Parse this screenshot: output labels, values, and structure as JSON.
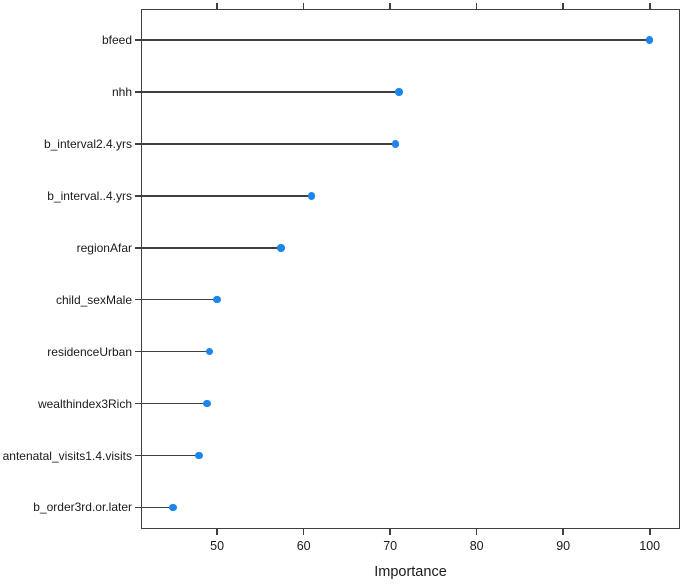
{
  "chart_data": {
    "type": "scatter",
    "variant": "dotplot-variable-importance",
    "title": "",
    "xlabel": "Importance",
    "ylabel": "",
    "categories": [
      "bfeed",
      "nhh",
      "b_interval2.4.yrs",
      "b_interval..4.yrs",
      "regionAfar",
      "child_sexMale",
      "residenceUrban",
      "wealthindex3Rich",
      "antenatal_visits1.4.visits",
      "b_order3rd.or.later"
    ],
    "values": [
      100.0,
      71.0,
      70.6,
      60.9,
      57.4,
      50.0,
      49.1,
      48.8,
      47.9,
      44.9
    ],
    "xticks": [
      50,
      60,
      70,
      80,
      90,
      100
    ],
    "xlim": [
      41.2,
      103.5
    ],
    "grid": false,
    "legend": null,
    "colors": {
      "point": "#1d86ee",
      "line": "#3f3f3f",
      "axis": "#3f3f3f",
      "text": "#1a1a1a"
    }
  }
}
